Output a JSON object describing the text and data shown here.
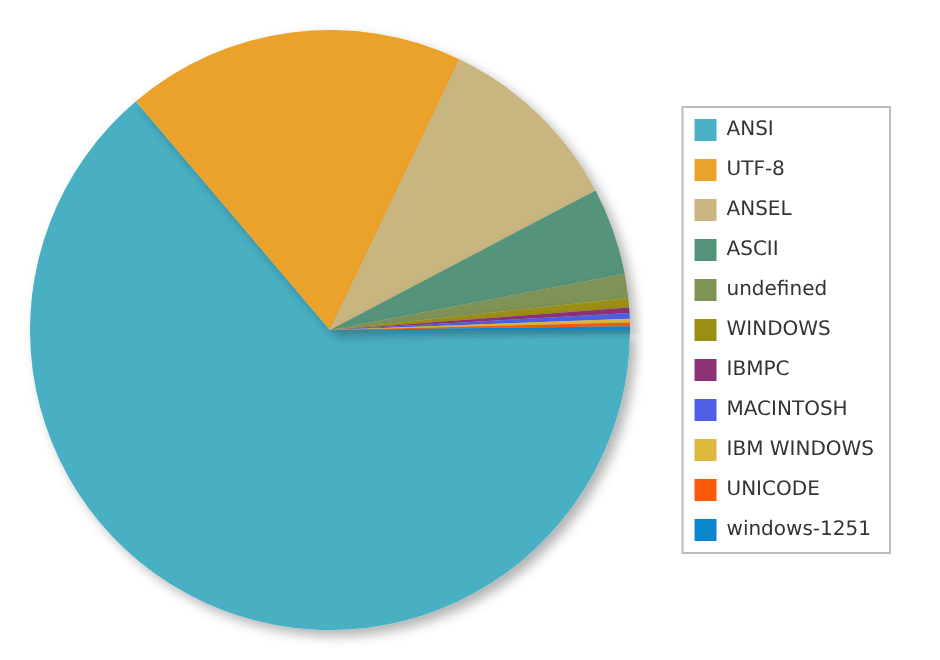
{
  "chart_data": {
    "type": "pie",
    "categories": [
      "ANSI",
      "UTF-8",
      "ANSEL",
      "ASCII",
      "undefined",
      "WINDOWS",
      "IBMPC",
      "MACINTOSH",
      "IBM WINDOWS",
      "UNICODE",
      "windows-1251"
    ],
    "values": [
      63.8,
      18.3,
      10.2,
      4.7,
      1.3,
      0.5,
      0.3,
      0.3,
      0.2,
      0.2,
      0.2
    ],
    "colors": [
      "#4ab0c4",
      "#eaa22a",
      "#c8b580",
      "#54937a",
      "#7f9356",
      "#9b8f12",
      "#8e3277",
      "#4e5ee6",
      "#dcb83c",
      "#f95a0a",
      "#0a86cc"
    ],
    "legend": "right"
  }
}
